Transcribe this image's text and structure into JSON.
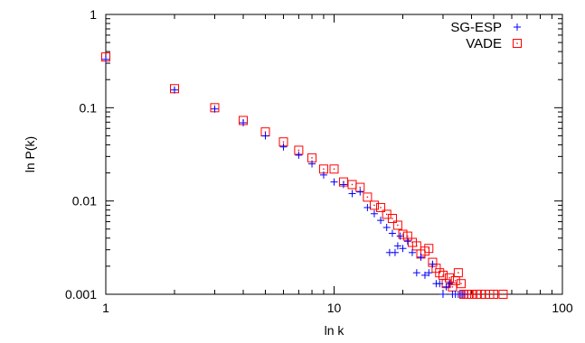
{
  "chart_data": {
    "type": "scatter",
    "title": "",
    "xlabel": "ln k",
    "ylabel": "ln P(k)",
    "x_scale": "log",
    "y_scale": "log",
    "xlim": [
      1,
      100
    ],
    "ylim": [
      0.001,
      1
    ],
    "x_ticks": [
      1,
      10,
      100
    ],
    "x_tick_labels": [
      "1",
      "10",
      "100"
    ],
    "y_ticks": [
      0.001,
      0.01,
      0.1,
      1
    ],
    "y_tick_labels": [
      "0.001",
      "0.01",
      "0.1",
      "1"
    ],
    "grid": false,
    "legend_position": "top-right",
    "series": [
      {
        "name": "SG-ESP",
        "color": "#0000ff",
        "marker": "plus",
        "points": [
          [
            1,
            0.33
          ],
          [
            2,
            0.155
          ],
          [
            3,
            0.097
          ],
          [
            4,
            0.069
          ],
          [
            5,
            0.05
          ],
          [
            6,
            0.038
          ],
          [
            7,
            0.031
          ],
          [
            8,
            0.025
          ],
          [
            9,
            0.019
          ],
          [
            10,
            0.016
          ],
          [
            11,
            0.015
          ],
          [
            12,
            0.012
          ],
          [
            13,
            0.0125
          ],
          [
            14,
            0.0085
          ],
          [
            15,
            0.0073
          ],
          [
            16,
            0.0062
          ],
          [
            17,
            0.0052
          ],
          [
            17.5,
            0.0028
          ],
          [
            18,
            0.0045
          ],
          [
            18.5,
            0.0028
          ],
          [
            19,
            0.0033
          ],
          [
            19.5,
            0.0042
          ],
          [
            20,
            0.0031
          ],
          [
            21,
            0.0037
          ],
          [
            22,
            0.0028
          ],
          [
            23,
            0.0017
          ],
          [
            24,
            0.0025
          ],
          [
            25,
            0.0016
          ],
          [
            26,
            0.0017
          ],
          [
            27,
            0.0021
          ],
          [
            28,
            0.0013
          ],
          [
            29,
            0.0013
          ],
          [
            30,
            0.001
          ],
          [
            31,
            0.0012
          ],
          [
            32,
            0.0013
          ],
          [
            33,
            0.001
          ],
          [
            34,
            0.001
          ],
          [
            35,
            0.001
          ],
          [
            36,
            0.001
          ],
          [
            37,
            0.001
          ]
        ]
      },
      {
        "name": "VADE",
        "color": "#ff0000",
        "marker": "square-dot",
        "points": [
          [
            1,
            0.35
          ],
          [
            2,
            0.16
          ],
          [
            3,
            0.1
          ],
          [
            4,
            0.073
          ],
          [
            5,
            0.055
          ],
          [
            6,
            0.043
          ],
          [
            7,
            0.035
          ],
          [
            8,
            0.029
          ],
          [
            9,
            0.022
          ],
          [
            10,
            0.022
          ],
          [
            11,
            0.016
          ],
          [
            12,
            0.015
          ],
          [
            13,
            0.014
          ],
          [
            14,
            0.011
          ],
          [
            15,
            0.009
          ],
          [
            16,
            0.0085
          ],
          [
            17,
            0.0072
          ],
          [
            18,
            0.0065
          ],
          [
            19,
            0.0055
          ],
          [
            20,
            0.0044
          ],
          [
            21,
            0.0042
          ],
          [
            22,
            0.0036
          ],
          [
            23,
            0.0033
          ],
          [
            24,
            0.0027
          ],
          [
            25,
            0.0029
          ],
          [
            26,
            0.0031
          ],
          [
            27,
            0.0022
          ],
          [
            28,
            0.0019
          ],
          [
            29,
            0.0017
          ],
          [
            30,
            0.0016
          ],
          [
            31,
            0.0013
          ],
          [
            32,
            0.0015
          ],
          [
            33,
            0.0012
          ],
          [
            34,
            0.0014
          ],
          [
            35,
            0.0017
          ],
          [
            36,
            0.0013
          ],
          [
            37,
            0.001
          ],
          [
            38,
            0.001
          ],
          [
            39,
            0.001
          ],
          [
            40,
            0.001
          ],
          [
            42,
            0.001
          ],
          [
            44,
            0.001
          ],
          [
            46,
            0.001
          ],
          [
            48,
            0.001
          ],
          [
            50,
            0.001
          ],
          [
            55,
            0.001
          ]
        ]
      }
    ]
  }
}
